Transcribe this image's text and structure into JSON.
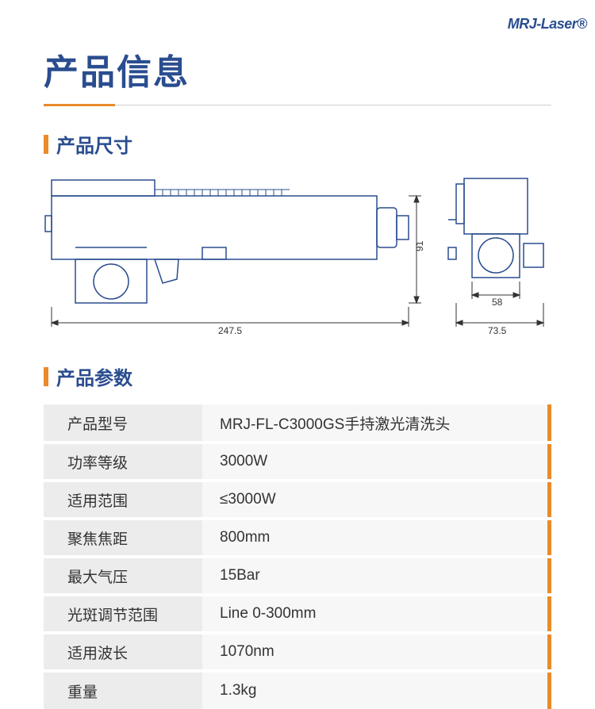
{
  "logo": {
    "text": "MRJ-Laser"
  },
  "main_title": "产品信息",
  "sections": {
    "dimensions": {
      "title": "产品尺寸",
      "drawing": {
        "main_view": {
          "length": "247.5",
          "height": "91"
        },
        "side_view": {
          "width_inner": "58",
          "width_outer": "73.5"
        },
        "line_color": "#2a4d8f",
        "dim_color": "#333333"
      }
    },
    "params": {
      "title": "产品参数",
      "rows": [
        {
          "label": "产品型号",
          "value": "MRJ-FL-C3000GS手持激光清洗头"
        },
        {
          "label": "功率等级",
          "value": "3000W"
        },
        {
          "label": "适用范围",
          "value": "≤3000W"
        },
        {
          "label": "聚焦焦距",
          "value": "800mm"
        },
        {
          "label": "最大气压",
          "value": "15Bar"
        },
        {
          "label": "光斑调节范围",
          "value": "Line 0-300mm"
        },
        {
          "label": "适用波长",
          "value": "1070nm"
        },
        {
          "label": "重量",
          "value": "1.3kg"
        }
      ],
      "label_bg": "#ececec",
      "value_bg": "#f7f7f7",
      "accent_color": "#e98b2a"
    }
  },
  "colors": {
    "brand_blue": "#2a4d8f",
    "accent_orange": "#e98b2a",
    "divider_gray": "#d0d0d0"
  }
}
